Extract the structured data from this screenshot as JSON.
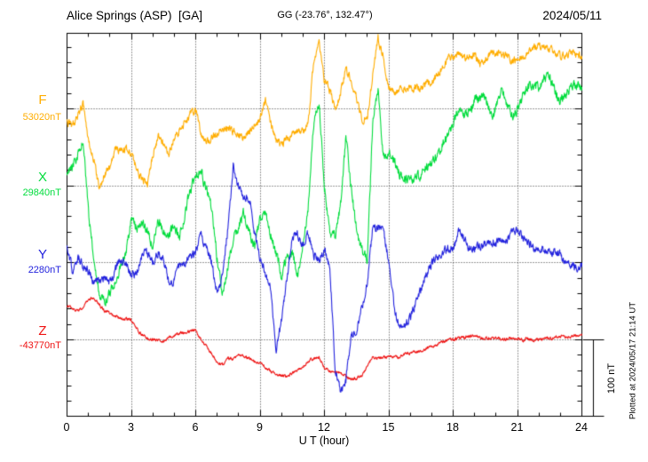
{
  "header": {
    "station": "Alice Springs (ASP)  [GA]",
    "coords": "GG (-23.76°, 132.47°)",
    "date": "2024/05/11"
  },
  "components": [
    {
      "label": "F",
      "value_label": "53020nT",
      "base_nT": 53020,
      "color": "#FFAD00",
      "noise_nT": 4.5
    },
    {
      "label": "X",
      "value_label": "29840nT",
      "base_nT": 29840,
      "color": "#00DC3C",
      "noise_nT": 6
    },
    {
      "label": "Y",
      "value_label": "2280nT",
      "base_nT": 2280,
      "color": "#2222DD",
      "noise_nT": 5
    },
    {
      "label": "Z",
      "value_label": "-43770nT",
      "base_nT": -43770,
      "color": "#EE1111",
      "noise_nT": 1.8
    }
  ],
  "x_axis": {
    "label": "U T (hour)",
    "ticks": [
      "0",
      "3",
      "6",
      "9",
      "12",
      "15",
      "18",
      "21",
      "24"
    ]
  },
  "scale_bar": {
    "label": "100 nT",
    "nT": 100
  },
  "footnote": "Plotted at 2024/05/17 21:14 UT",
  "chart_data": {
    "type": "line",
    "title": "Alice Springs (ASP) [GA] magnetogram 2024/05/11",
    "xlabel": "U T (hour)",
    "x_start": 0,
    "x_step_hours": 0.25,
    "x_range": [
      0,
      24
    ],
    "grid": "dotted, every 3 hours vertical, component baselines horizontal",
    "legend_position": "left margin, per-component colored labels",
    "series": [
      {
        "name": "F",
        "baseline_nT": 53020,
        "values": [
          53003,
          52999,
          53013,
          53027,
          52978,
          52955,
          52918,
          52935,
          52944,
          52969,
          52965,
          52967,
          52962,
          52942,
          52927,
          52924,
          52962,
          52984,
          52976,
          52960,
          52983,
          52990,
          53004,
          53013,
          53018,
          52988,
          52976,
          52983,
          52988,
          52995,
          52992,
          52991,
          52985,
          52982,
          52990,
          53000,
          53008,
          53029,
          52999,
          52978,
          52974,
          52980,
          52985,
          52989,
          52990,
          53004,
          53082,
          53103,
          53055,
          53045,
          53017,
          53040,
          53072,
          53055,
          53034,
          53005,
          53011,
          53063,
          53112,
          53085,
          53049,
          53041,
          53045,
          53047,
          53045,
          53049,
          53047,
          53052,
          53055,
          53063,
          53074,
          53085,
          53087,
          53089,
          53085,
          53088,
          53092,
          53077,
          53082,
          53096,
          53092,
          53093,
          53089,
          53081,
          53086,
          53089,
          53095,
          53101,
          53102,
          53100,
          53098,
          53093,
          53088,
          53090,
          53092,
          53090,
          53089
        ]
      },
      {
        "name": "X",
        "baseline_nT": 29840,
        "values": [
          29858,
          29866,
          29882,
          29903,
          29804,
          29746,
          29700,
          29691,
          29700,
          29717,
          29735,
          29755,
          29795,
          29787,
          29790,
          29783,
          29758,
          29796,
          29783,
          29777,
          29784,
          29772,
          29804,
          29836,
          29854,
          29857,
          29836,
          29810,
          29746,
          29700,
          29735,
          29767,
          29789,
          29806,
          29778,
          29760,
          29800,
          29804,
          29778,
          29752,
          29723,
          29749,
          29755,
          29721,
          29758,
          29815,
          29919,
          29948,
          29838,
          29781,
          29774,
          29815,
          29902,
          29838,
          29781,
          29758,
          29746,
          29919,
          29965,
          29873,
          29885,
          29871,
          29855,
          29849,
          29848,
          29850,
          29854,
          29865,
          29873,
          29880,
          29894,
          29907,
          29919,
          29940,
          29931,
          29935,
          29950,
          29956,
          29954,
          29931,
          29940,
          29969,
          29948,
          29933,
          29939,
          29956,
          29969,
          29971,
          29967,
          29978,
          29982,
          29962,
          29950,
          29960,
          29967,
          29970,
          29967
        ]
      },
      {
        "name": "Y",
        "baseline_nT": 2280,
        "values": [
          2300,
          2271,
          2288,
          2277,
          2269,
          2254,
          2257,
          2261,
          2254,
          2271,
          2283,
          2278,
          2261,
          2269,
          2288,
          2293,
          2281,
          2294,
          2284,
          2252,
          2258,
          2278,
          2281,
          2288,
          2294,
          2315,
          2300,
          2280,
          2240,
          2263,
          2326,
          2407,
          2376,
          2367,
          2365,
          2318,
          2286,
          2265,
          2249,
          2165,
          2205,
          2257,
          2312,
          2318,
          2302,
          2321,
          2288,
          2284,
          2300,
          2275,
          2142,
          2113,
          2127,
          2186,
          2194,
          2223,
          2255,
          2323,
          2328,
          2322,
          2282,
          2223,
          2196,
          2197,
          2209,
          2228,
          2246,
          2265,
          2280,
          2287,
          2294,
          2298,
          2297,
          2318,
          2312,
          2300,
          2298,
          2303,
          2306,
          2307,
          2306,
          2307,
          2309,
          2318,
          2322,
          2315,
          2307,
          2298,
          2299,
          2297,
          2294,
          2293,
          2290,
          2280,
          2276,
          2275,
          2277
        ]
      },
      {
        "name": "Z",
        "baseline_nT": -43770,
        "values": [
          -43726,
          -43730,
          -43733,
          -43728,
          -43717,
          -43715,
          -43724,
          -43732,
          -43735,
          -43740,
          -43742,
          -43743,
          -43745,
          -43756,
          -43764,
          -43768,
          -43770,
          -43770,
          -43771,
          -43767,
          -43764,
          -43761,
          -43760,
          -43758,
          -43758,
          -43769,
          -43779,
          -43788,
          -43799,
          -43802,
          -43795,
          -43794,
          -43788,
          -43792,
          -43794,
          -43798,
          -43800,
          -43805,
          -43812,
          -43815,
          -43816,
          -43818,
          -43813,
          -43809,
          -43805,
          -43798,
          -43794,
          -43793,
          -43806,
          -43810,
          -43812,
          -43813,
          -43817,
          -43822,
          -43820,
          -43817,
          -43805,
          -43792,
          -43794,
          -43793,
          -43792,
          -43793,
          -43792,
          -43788,
          -43787,
          -43786,
          -43784,
          -43782,
          -43779,
          -43776,
          -43772,
          -43770,
          -43769,
          -43768,
          -43767,
          -43765,
          -43764,
          -43767,
          -43768,
          -43767,
          -43768,
          -43769,
          -43769,
          -43768,
          -43768,
          -43770,
          -43769,
          -43770,
          -43769,
          -43768,
          -43769,
          -43767,
          -43765,
          -43767,
          -43765,
          -43764,
          -43765
        ]
      }
    ]
  }
}
